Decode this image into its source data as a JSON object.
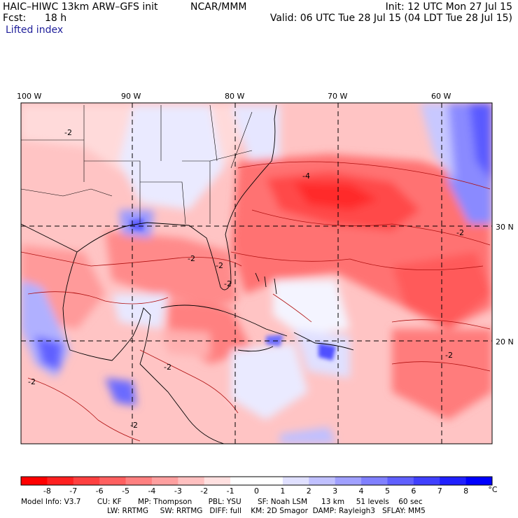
{
  "header": {
    "model": "HAIC–HIWC 13km ARW–GFS init",
    "org": "NCAR/MMM",
    "init": "Init: 12 UTC Mon 27 Jul 15",
    "fcst_label": "Fcst:",
    "fcst_value": "18 h",
    "valid": "Valid: 06 UTC Tue 28 Jul 15 (04 LDT Tue 28 Jul 15)",
    "field": "Lifted index"
  },
  "map": {
    "lon_labels": [
      "100 W",
      "90 W",
      "80 W",
      "70 W",
      "60 W"
    ],
    "lat_labels": [
      "30 N",
      "20 N"
    ],
    "contour_labels": [
      "-2",
      "-2",
      "-2",
      "-4",
      "-2",
      "-2",
      "-2",
      "-2",
      "-2",
      "-2"
    ]
  },
  "colorbar": {
    "ticks": [
      "-8",
      "-7",
      "-6",
      "-5",
      "-4",
      "-3",
      "-2",
      "-1",
      "0",
      "1",
      "2",
      "3",
      "4",
      "5",
      "6",
      "7",
      "8"
    ],
    "unit": "°C",
    "colors": [
      "#ff0000",
      "#ff2020",
      "#ff4040",
      "#ff6060",
      "#ff8080",
      "#ffa0a0",
      "#ffc0c0",
      "#ffe0e0",
      "#ffffff",
      "#ffffff",
      "#e0e0ff",
      "#c0c0ff",
      "#a0a0ff",
      "#8080ff",
      "#6060ff",
      "#4040ff",
      "#2020ff",
      "#0000ff"
    ]
  },
  "model_info": {
    "line1": "Model Info: V3.7       CU: KF       MP: Thompson       PBL: YSU       SF: Noah LSM      13 km     51 levels    60 sec",
    "line2": "LW: RRTMG     SW: RRTMG   DIFF: full    KM: 2D Smagor  DAMP: Rayleigh3   SFLAY: MM5"
  }
}
